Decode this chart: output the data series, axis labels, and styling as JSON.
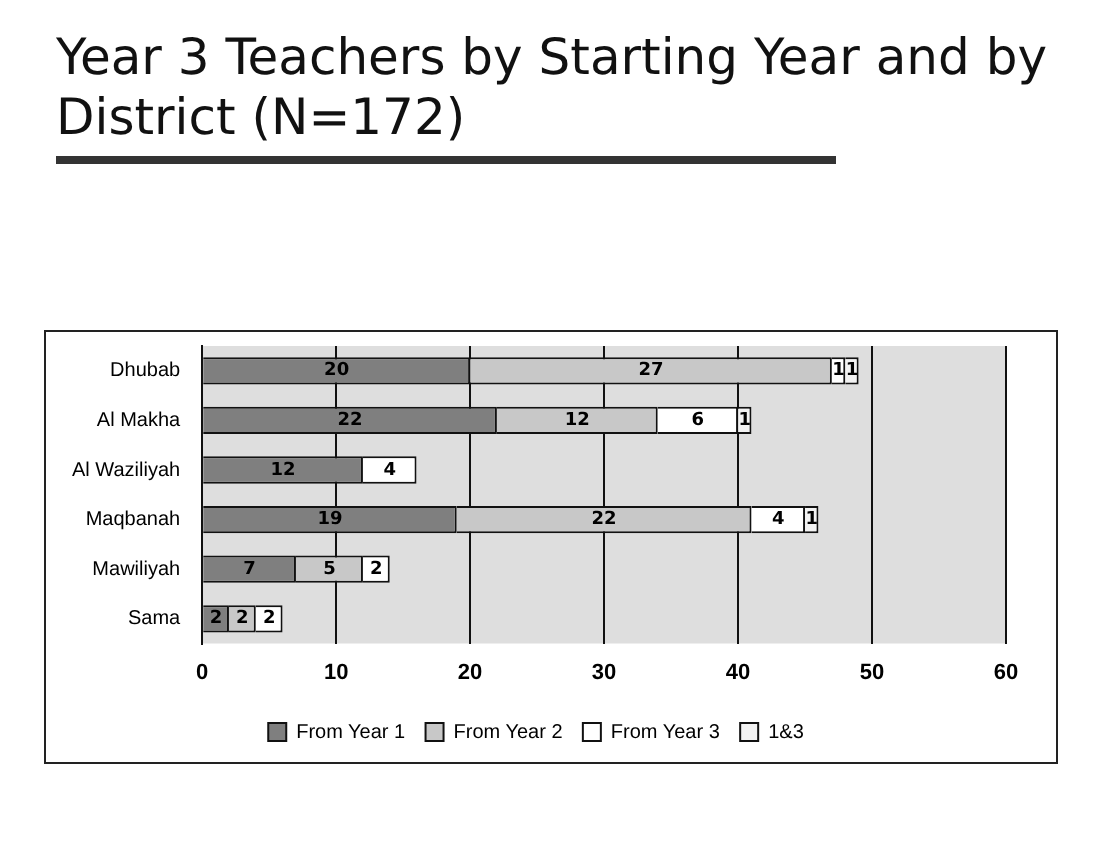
{
  "chart_data": {
    "type": "bar",
    "orientation": "horizontal",
    "stacked": true,
    "title": "Year 3 Teachers by Starting Year and by District (N=172)",
    "categories": [
      "Dhubab",
      "Al Makha",
      "Al Waziliyah",
      "Maqbanah",
      "Mawiliyah",
      "Sama"
    ],
    "series": [
      {
        "name": "From Year 1",
        "color": "#7f7f7f",
        "values": [
          20,
          22,
          12,
          19,
          7,
          2
        ]
      },
      {
        "name": "From Year 2",
        "color": "#c8c8c8",
        "values": [
          27,
          12,
          null,
          22,
          5,
          2
        ]
      },
      {
        "name": "From Year 3",
        "color": "#ffffff",
        "values": [
          1,
          6,
          4,
          4,
          2,
          2
        ]
      },
      {
        "name": "1&3",
        "color": "#f2f2f2",
        "values": [
          1,
          1,
          null,
          1,
          null,
          null
        ]
      }
    ],
    "xlim": [
      0,
      60
    ],
    "xticks": [
      0,
      10,
      20,
      30,
      40,
      50,
      60
    ],
    "grid": "x",
    "legend": "bottom",
    "data_labels": true
  }
}
